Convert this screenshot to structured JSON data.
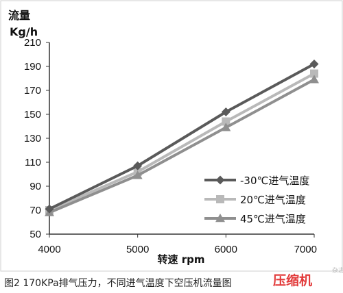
{
  "chart_data": {
    "type": "line",
    "ylabel_line1": "流量",
    "ylabel_line2": "Kg/h",
    "xlabel": "转速 rpm",
    "x": [
      4000,
      5000,
      6000,
      7000
    ],
    "x_tick_labels": [
      "4000",
      "5000",
      "6000",
      "7000"
    ],
    "ylim": [
      50,
      210
    ],
    "y_ticks": [
      50,
      70,
      90,
      110,
      130,
      150,
      170,
      190,
      210
    ],
    "y_tick_labels": [
      "50",
      "70",
      "90",
      "110",
      "130",
      "150",
      "170",
      "190",
      "210"
    ],
    "grid": false,
    "legend_position": "bottom-right",
    "series": [
      {
        "name": "-30℃进气温度",
        "marker": "diamond",
        "color": "#5a5a5a",
        "values": [
          71,
          107,
          152,
          192
        ]
      },
      {
        "name": "20℃进气温度",
        "marker": "square",
        "color": "#b9b9b9",
        "values": [
          70,
          102,
          144,
          184
        ]
      },
      {
        "name": "45℃进气温度",
        "marker": "triangle",
        "color": "#8f8f8f",
        "values": [
          68,
          99,
          139,
          179
        ]
      }
    ]
  },
  "caption": "图2 170KPa排气压力，不同进气温度下空压机流量图",
  "watermark": {
    "main": "压缩机",
    "side": "杂志"
  }
}
